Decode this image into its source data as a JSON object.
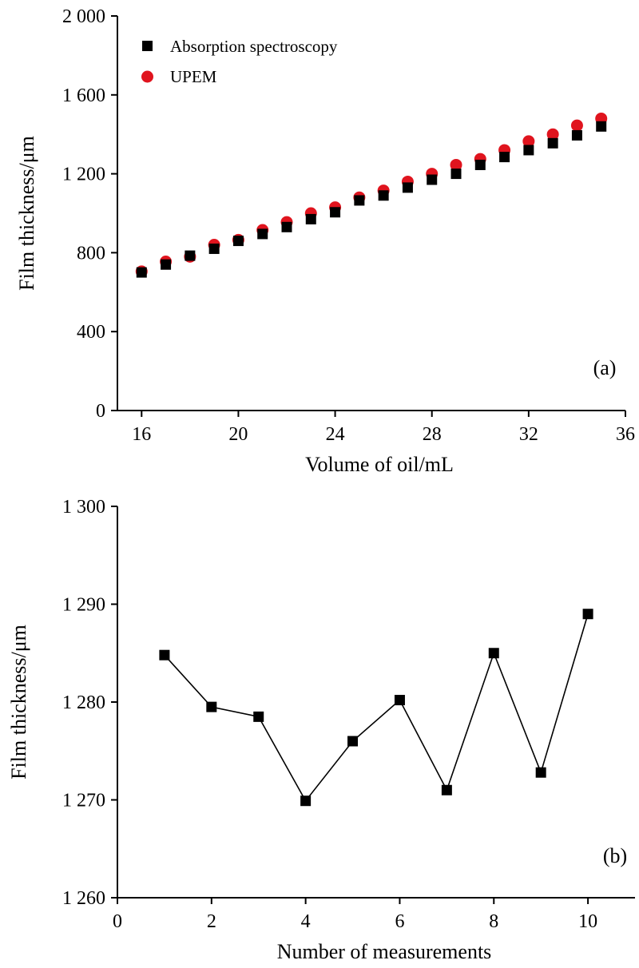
{
  "chart_data": [
    {
      "type": "scatter",
      "panel_label": "(a)",
      "xlabel": "Volume of oil/mL",
      "ylabel": "Film thickness/μm",
      "xlim": [
        15,
        36
      ],
      "ylim": [
        0,
        2000
      ],
      "x_ticks": [
        16,
        20,
        24,
        28,
        32,
        36
      ],
      "x_tick_labels": [
        "16",
        "20",
        "24",
        "28",
        "32",
        "36"
      ],
      "y_ticks": [
        0,
        400,
        800,
        1200,
        1600,
        2000
      ],
      "y_tick_labels": [
        "0",
        "400",
        "800",
        "1 200",
        "1 600",
        "2 000"
      ],
      "legend_position": "top-left",
      "series": [
        {
          "name": "Absorption spectroscopy",
          "marker": "square",
          "color": "#000000",
          "x": [
            16,
            17,
            18,
            19,
            20,
            21,
            22,
            23,
            24,
            25,
            26,
            27,
            28,
            29,
            30,
            31,
            32,
            33,
            34,
            35
          ],
          "y": [
            700,
            740,
            785,
            820,
            860,
            895,
            930,
            970,
            1005,
            1065,
            1090,
            1130,
            1170,
            1200,
            1245,
            1285,
            1320,
            1355,
            1395,
            1440
          ]
        },
        {
          "name": "UPEM",
          "marker": "circle",
          "color": "#e0141e",
          "x": [
            16,
            17,
            18,
            19,
            20,
            21,
            22,
            23,
            24,
            25,
            26,
            27,
            28,
            29,
            30,
            31,
            32,
            33,
            34,
            35
          ],
          "y": [
            705,
            755,
            780,
            840,
            865,
            915,
            955,
            1000,
            1030,
            1080,
            1115,
            1160,
            1200,
            1245,
            1275,
            1320,
            1365,
            1400,
            1445,
            1480
          ]
        }
      ]
    },
    {
      "type": "line",
      "panel_label": "(b)",
      "xlabel": "Number of measurements",
      "ylabel": "Film thickness/μm",
      "xlim": [
        0,
        11
      ],
      "ylim": [
        1260,
        1300
      ],
      "x_ticks": [
        0,
        2,
        4,
        6,
        8,
        10
      ],
      "x_tick_labels": [
        "0",
        "2",
        "4",
        "6",
        "8",
        "10"
      ],
      "y_ticks": [
        1260,
        1270,
        1280,
        1290,
        1300
      ],
      "y_tick_labels": [
        "1 260",
        "1 270",
        "1 280",
        "1 290",
        "1 300"
      ],
      "series": [
        {
          "marker": "square",
          "color": "#000000",
          "x": [
            1,
            2,
            3,
            4,
            5,
            6,
            7,
            8,
            9,
            10
          ],
          "y": [
            1284.8,
            1279.5,
            1278.5,
            1269.9,
            1276.0,
            1280.2,
            1271.0,
            1285.0,
            1272.8,
            1289.0
          ]
        }
      ]
    }
  ]
}
